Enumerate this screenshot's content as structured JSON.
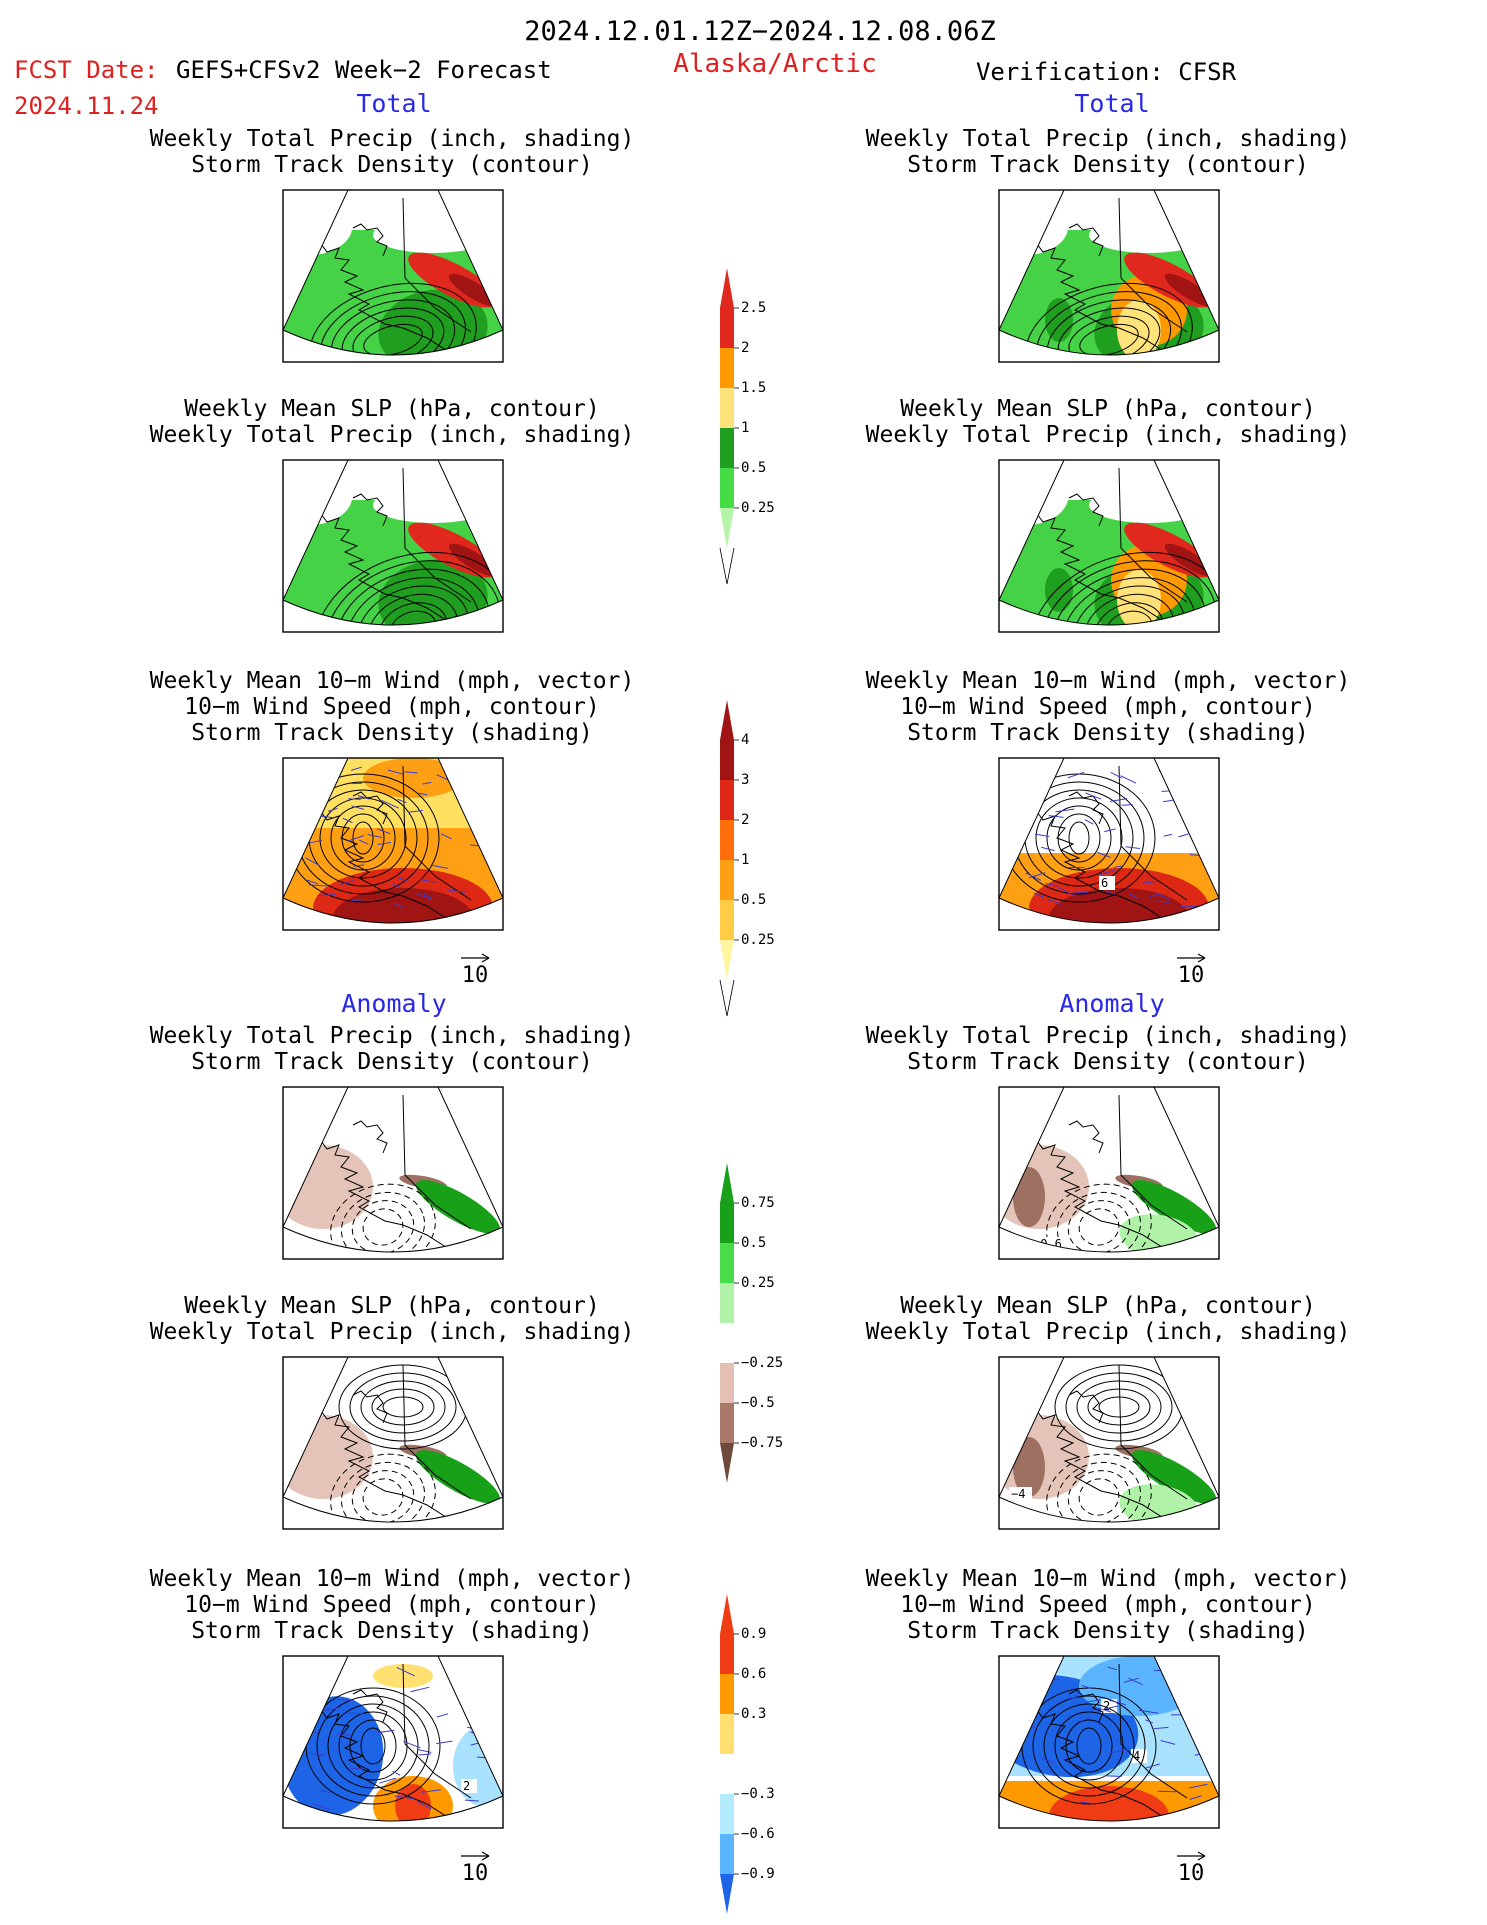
{
  "header": {
    "period": "2024.12.01.12Z−2024.12.08.06Z",
    "fcst_date_label": "FCST Date:",
    "fcst_model": "GEFS+CFSv2 Week−2 Forecast",
    "fcst_date": "2024.11.24",
    "region": "Alaska/Arctic",
    "verification": "Verification: CFSR"
  },
  "sections": {
    "total": "Total",
    "anomaly": "Anomaly"
  },
  "panel_titles": {
    "precip_track": [
      "Weekly Total Precip (inch, shading)",
      "Storm Track Density (contour)"
    ],
    "slp_precip": [
      "Weekly Mean SLP (hPa, contour)",
      "Weekly Total Precip (inch, shading)"
    ],
    "wind_track": [
      "Weekly Mean 10−m Wind (mph, vector)",
      "10−m Wind Speed (mph, contour)",
      "Storm Track Density (shading)"
    ]
  },
  "vector_reference": "10",
  "colorbars": {
    "total_precip": {
      "labels": [
        "2.5",
        "2",
        "1.5",
        "1",
        "0.5",
        "0.25"
      ],
      "colors": [
        "#e0281e",
        "#ff9900",
        "#ffe37a",
        "#1f9e1f",
        "#46dc46",
        "#b4f5aa"
      ]
    },
    "total_track": {
      "labels": [
        "4",
        "3",
        "2",
        "1",
        "0.5",
        "0.25"
      ],
      "colors": [
        "#a01414",
        "#dc2814",
        "#ff6e0a",
        "#ffa014",
        "#ffcc44",
        "#fff5a0"
      ]
    },
    "anom_precip": {
      "labels": [
        "0.75",
        "0.5",
        "0.25",
        "−0.25",
        "−0.5",
        "−0.75"
      ],
      "colors": [
        "#18a018",
        "#48dc48",
        "#b0f2a8",
        "#ffffff",
        "#e4c0b4",
        "#a87868",
        "#6e4a3c"
      ]
    },
    "anom_track": {
      "labels": [
        "0.9",
        "0.6",
        "0.3",
        "−0.3",
        "−0.6",
        "−0.9"
      ],
      "colors": [
        "#f03c14",
        "#ff9900",
        "#ffe070",
        "#ffffff",
        "#b4ecff",
        "#5ab4ff",
        "#1e64e6"
      ]
    }
  },
  "maps": {
    "fc_precip": "#46d246",
    "fc_precip_dark": "#1f9e1f",
    "heavy": "#e0281e",
    "moderate": "#ff9900",
    "track_dark": "#a01414",
    "track_orange": "#ffa014",
    "track_yellow": "#ffe060",
    "dry_anom": "#e4c4b8",
    "dry_anom_dark": "#9e7062",
    "wet_anom": "#18a018",
    "blue_anom": "#1e64e6",
    "lightblue_anom": "#a8e2ff",
    "vector": "#3c3ccc"
  },
  "contour_labels": {
    "verif_precip_anom": "−0.6",
    "verif_slp_anom": "−4",
    "fc_wind_anom": "2",
    "verif_wind_total": "6",
    "verif_wind_anom_a": "2",
    "verif_wind_anom_b": "4"
  }
}
